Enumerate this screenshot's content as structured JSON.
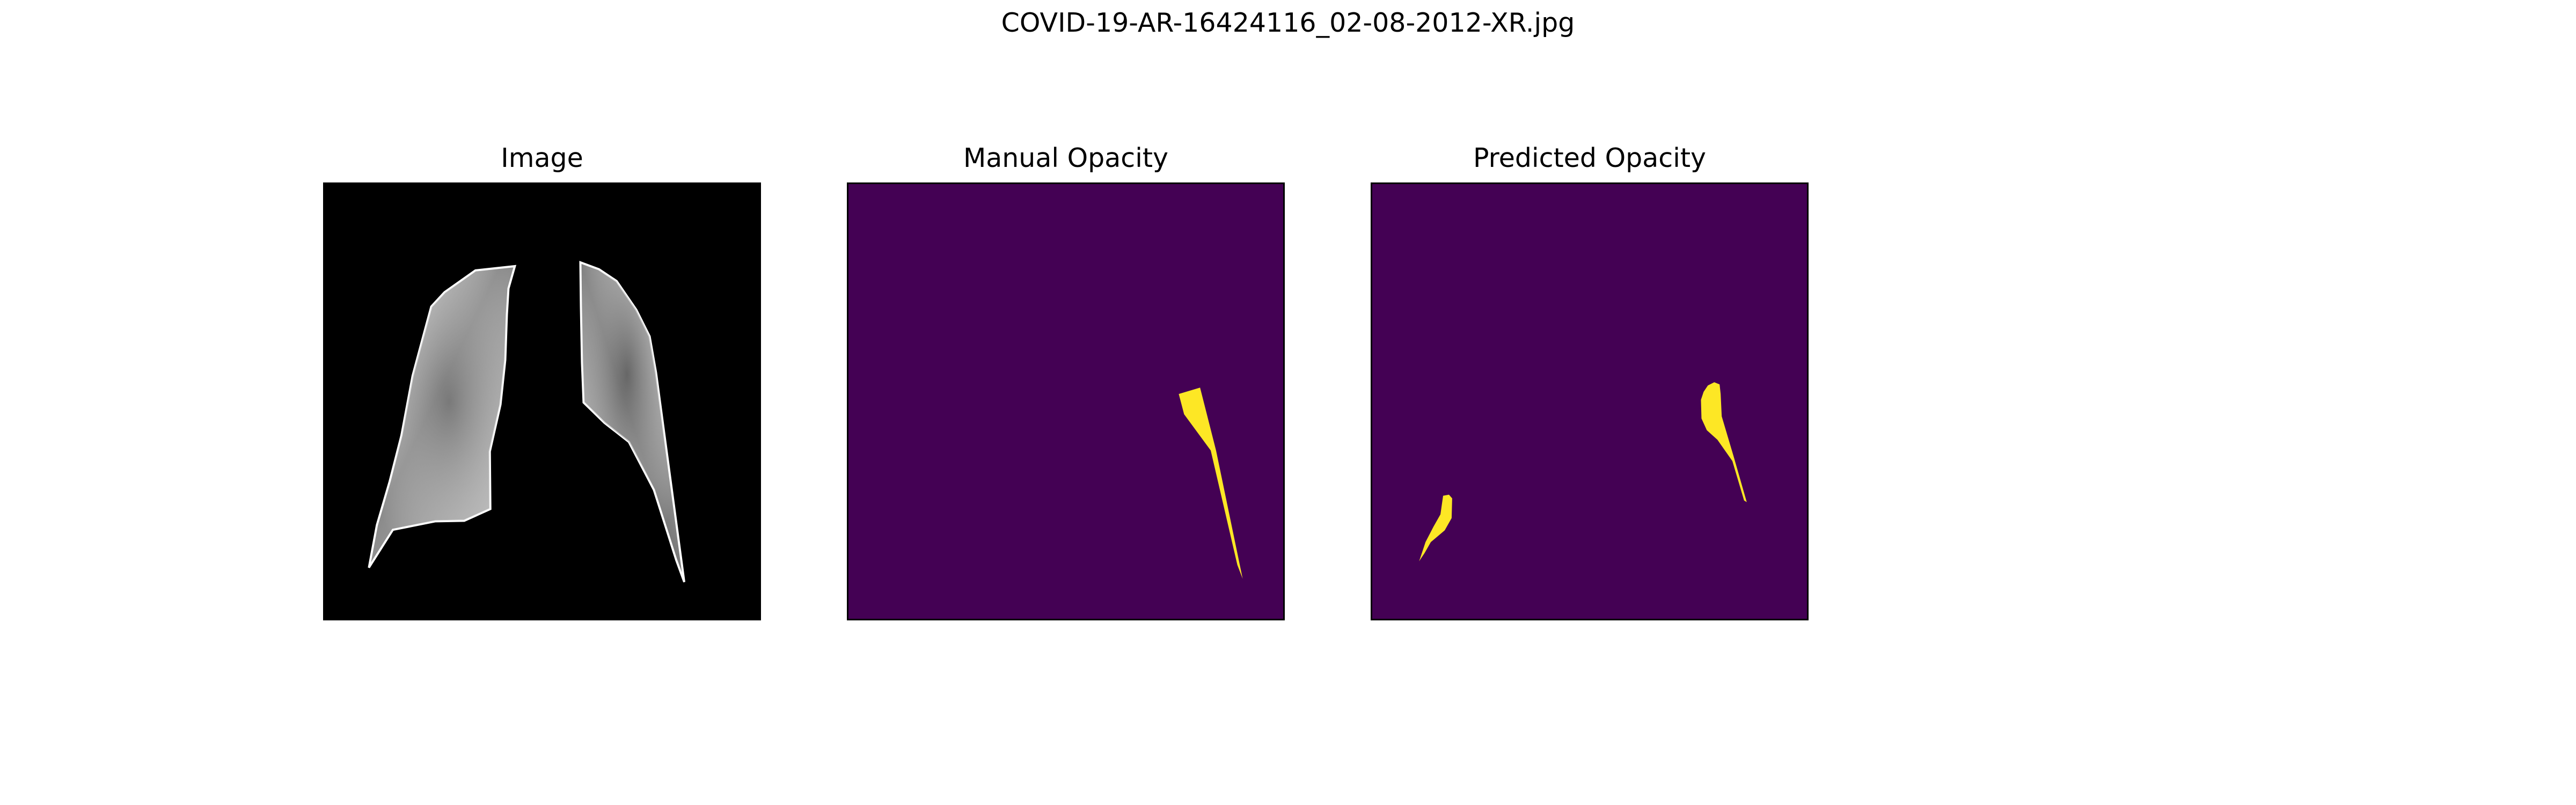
{
  "figure": {
    "suptitle": "COVID-19-AR-16424116_02-08-2012-XR.jpg"
  },
  "panels": [
    {
      "title": "Image",
      "kind": "grayscale-xray-lung-crop"
    },
    {
      "title": "Manual Opacity",
      "kind": "binary-mask"
    },
    {
      "title": "Predicted Opacity",
      "kind": "binary-mask"
    }
  ],
  "colors": {
    "mask_background": "#440154",
    "mask_foreground": "#fde725",
    "image_background": "#000000",
    "lung_light": "#f2f2f2",
    "lung_dark": "#6e6e6e"
  }
}
